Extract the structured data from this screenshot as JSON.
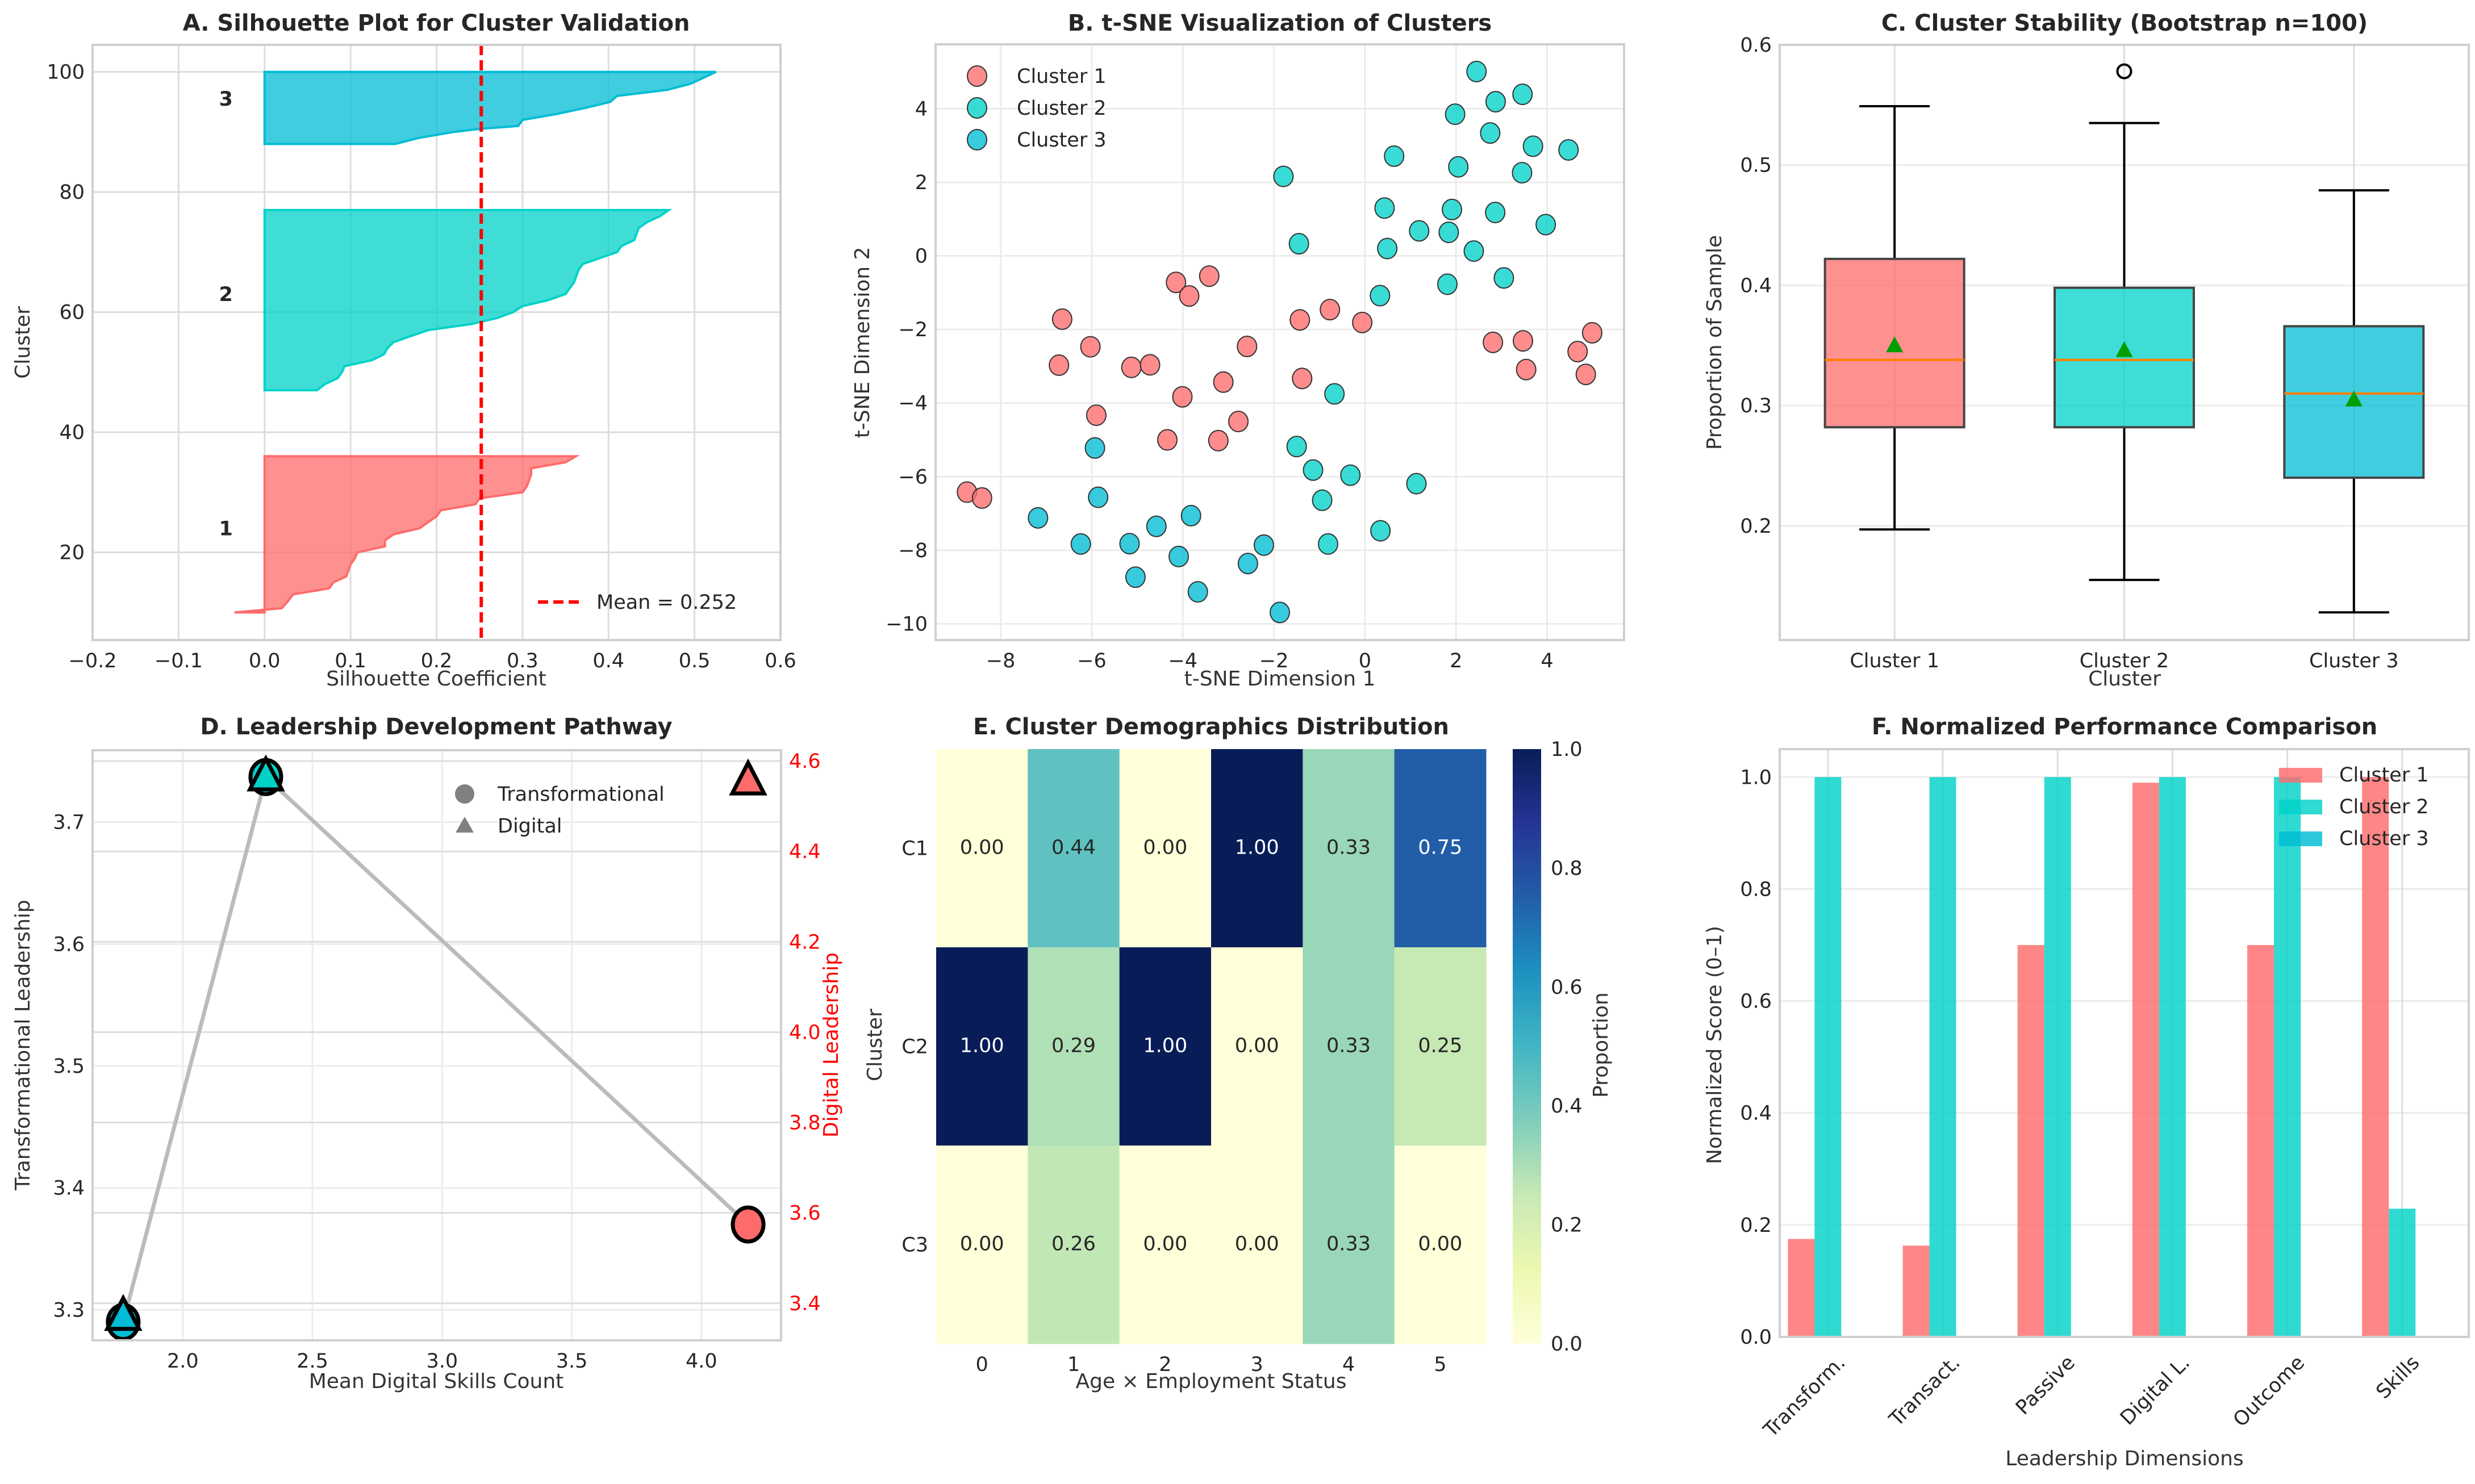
{
  "colors": {
    "cluster1": "#FF6B6B",
    "cluster2": "#00D2C8",
    "cluster3": "#00BCD4",
    "mean_line": "#FF0000",
    "median": "#FF8000",
    "mean_marker": "#009E00",
    "path_line": "#BBBBBB",
    "right_axis": "#FF0000"
  },
  "chart_data": [
    {
      "id": "A",
      "type": "area",
      "title": "A. Silhouette Plot for Cluster Validation",
      "xlabel": "Silhouette Coefficient",
      "ylabel": "Cluster",
      "xlim": [
        -0.2,
        0.6
      ],
      "ylim": [
        5.4,
        104.5
      ],
      "xticks": [
        "−0.2",
        "−0.1",
        "0.0",
        "0.1",
        "0.2",
        "0.3",
        "0.4",
        "0.5",
        "0.6"
      ],
      "xtick_values": [
        -0.2,
        -0.1,
        0.0,
        0.1,
        0.2,
        0.3,
        0.4,
        0.5,
        0.6
      ],
      "yticks": [
        "20",
        "40",
        "60",
        "80",
        "100"
      ],
      "ytick_values": [
        20,
        40,
        60,
        80,
        100
      ],
      "grid": true,
      "mean_value": 0.252,
      "legend": {
        "label": "Mean = 0.252",
        "position": "lower-right"
      },
      "series": [
        {
          "name": "1",
          "label": "1",
          "color_key": "cluster1",
          "label_y": 24,
          "profile": [
            [
              10,
              -0.035
            ],
            [
              10.7,
              0.02
            ],
            [
              12,
              0.028
            ],
            [
              13,
              0.033
            ],
            [
              14,
              0.075
            ],
            [
              15,
              0.08
            ],
            [
              16,
              0.095
            ],
            [
              18,
              0.1
            ],
            [
              19,
              0.105
            ],
            [
              20,
              0.108
            ],
            [
              21,
              0.14
            ],
            [
              22,
              0.14
            ],
            [
              23,
              0.15
            ],
            [
              24,
              0.18
            ],
            [
              25,
              0.19
            ],
            [
              26,
              0.2
            ],
            [
              27,
              0.205
            ],
            [
              28,
              0.245
            ],
            [
              29,
              0.25
            ],
            [
              30,
              0.3
            ],
            [
              31,
              0.305
            ],
            [
              33,
              0.31
            ],
            [
              34,
              0.31
            ],
            [
              35,
              0.35
            ],
            [
              36,
              0.362
            ]
          ]
        },
        {
          "name": "2",
          "label": "2",
          "color_key": "cluster2",
          "label_y": 63,
          "profile": [
            [
              47,
              0.061
            ],
            [
              48,
              0.07
            ],
            [
              49,
              0.085
            ],
            [
              50,
              0.09
            ],
            [
              51,
              0.093
            ],
            [
              52,
              0.125
            ],
            [
              53,
              0.139
            ],
            [
              54,
              0.143
            ],
            [
              55,
              0.15
            ],
            [
              56,
              0.17
            ],
            [
              57,
              0.19
            ],
            [
              58,
              0.24
            ],
            [
              59,
              0.27
            ],
            [
              60,
              0.289
            ],
            [
              61,
              0.3
            ],
            [
              62,
              0.33
            ],
            [
              63,
              0.35
            ],
            [
              64,
              0.355
            ],
            [
              65,
              0.36
            ],
            [
              67,
              0.365
            ],
            [
              68,
              0.37
            ],
            [
              69,
              0.39
            ],
            [
              70,
              0.41
            ],
            [
              71,
              0.415
            ],
            [
              72,
              0.43
            ],
            [
              74,
              0.435
            ],
            [
              75,
              0.445
            ],
            [
              76,
              0.46
            ],
            [
              77,
              0.47
            ]
          ]
        },
        {
          "name": "3",
          "label": "3",
          "color_key": "cluster3",
          "label_y": 95.5,
          "profile": [
            [
              88,
              0.152
            ],
            [
              89,
              0.179
            ],
            [
              90,
              0.22
            ],
            [
              90.5,
              0.25
            ],
            [
              91,
              0.295
            ],
            [
              92,
              0.3
            ],
            [
              93,
              0.34
            ],
            [
              94,
              0.373
            ],
            [
              95,
              0.402
            ],
            [
              96,
              0.41
            ],
            [
              97,
              0.468
            ],
            [
              98,
              0.495
            ],
            [
              99,
              0.51
            ],
            [
              100,
              0.525
            ]
          ]
        }
      ]
    },
    {
      "id": "B",
      "type": "scatter",
      "title": "B. t-SNE Visualization of Clusters",
      "xlabel": "t-SNE Dimension 1",
      "ylabel": "t-SNE Dimension 2",
      "xlim": [
        -9.43,
        5.69
      ],
      "ylim": [
        -10.44,
        5.75
      ],
      "xticks": [
        "−8",
        "−6",
        "−4",
        "−2",
        "0",
        "2",
        "4"
      ],
      "xtick_values": [
        -8,
        -6,
        -4,
        -2,
        0,
        2,
        4
      ],
      "yticks": [
        "−10",
        "−8",
        "−6",
        "−4",
        "−2",
        "0",
        "2",
        "4"
      ],
      "ytick_values": [
        -10,
        -8,
        -6,
        -4,
        -2,
        0,
        2,
        4
      ],
      "grid": true,
      "legend": {
        "position": "top-left"
      },
      "series": [
        {
          "name": "Cluster 1",
          "color_key": "cluster1",
          "points": [
            [
              -6.65,
              -1.72
            ],
            [
              -6.03,
              -2.47
            ],
            [
              -6.72,
              -2.97
            ],
            [
              -5.13,
              -3.03
            ],
            [
              -4.72,
              -2.96
            ],
            [
              -5.9,
              -4.33
            ],
            [
              -4.15,
              -0.72
            ],
            [
              -3.86,
              -1.09
            ],
            [
              -3.42,
              -0.55
            ],
            [
              -2.59,
              -2.46
            ],
            [
              -3.11,
              -3.43
            ],
            [
              -4.01,
              -3.83
            ],
            [
              -2.78,
              -4.5
            ],
            [
              -4.34,
              -5.0
            ],
            [
              -3.22,
              -5.02
            ],
            [
              -1.43,
              -1.74
            ],
            [
              -0.77,
              -1.46
            ],
            [
              -0.06,
              -1.81
            ],
            [
              -1.38,
              -3.33
            ],
            [
              2.81,
              -2.35
            ],
            [
              3.47,
              -2.31
            ],
            [
              3.54,
              -3.09
            ],
            [
              4.67,
              -2.6
            ],
            [
              4.99,
              -2.09
            ],
            [
              4.85,
              -3.22
            ],
            [
              -8.74,
              -6.42
            ],
            [
              -8.41,
              -6.58
            ]
          ]
        },
        {
          "name": "Cluster 2",
          "color_key": "cluster2",
          "points": [
            [
              2.45,
              5.01
            ],
            [
              3.46,
              4.39
            ],
            [
              2.87,
              4.19
            ],
            [
              1.98,
              3.85
            ],
            [
              2.75,
              3.34
            ],
            [
              3.69,
              2.98
            ],
            [
              4.47,
              2.88
            ],
            [
              0.64,
              2.71
            ],
            [
              2.05,
              2.42
            ],
            [
              3.45,
              2.26
            ],
            [
              -1.79,
              2.16
            ],
            [
              0.43,
              1.3
            ],
            [
              1.91,
              1.26
            ],
            [
              2.86,
              1.18
            ],
            [
              3.97,
              0.85
            ],
            [
              1.19,
              0.68
            ],
            [
              1.84,
              0.64
            ],
            [
              -1.45,
              0.33
            ],
            [
              0.49,
              0.2
            ],
            [
              2.39,
              0.13
            ],
            [
              3.05,
              -0.6
            ],
            [
              1.81,
              -0.77
            ],
            [
              0.33,
              -1.08
            ],
            [
              -0.67,
              -3.75
            ],
            [
              -1.5,
              -5.18
            ],
            [
              -1.14,
              -5.82
            ],
            [
              -0.32,
              -5.96
            ],
            [
              1.13,
              -6.19
            ],
            [
              -0.94,
              -6.64
            ],
            [
              0.34,
              -7.47
            ],
            [
              -0.81,
              -7.83
            ]
          ]
        },
        {
          "name": "Cluster 3",
          "color_key": "cluster3",
          "points": [
            [
              -5.93,
              -5.22
            ],
            [
              -5.86,
              -6.56
            ],
            [
              -7.18,
              -7.12
            ],
            [
              -6.24,
              -7.83
            ],
            [
              -5.17,
              -7.82
            ],
            [
              -5.04,
              -8.73
            ],
            [
              -4.58,
              -7.35
            ],
            [
              -3.82,
              -7.06
            ],
            [
              -4.09,
              -8.17
            ],
            [
              -3.67,
              -9.13
            ],
            [
              -2.57,
              -8.36
            ],
            [
              -2.22,
              -7.86
            ],
            [
              -1.87,
              -9.69
            ]
          ]
        }
      ]
    },
    {
      "id": "C",
      "type": "box",
      "title": "C. Cluster Stability (Bootstrap n=100)",
      "xlabel": "Cluster",
      "ylabel": "Proportion of Sample",
      "ylim": [
        0.105,
        0.6
      ],
      "yticks": [
        "0.2",
        "0.3",
        "0.4",
        "0.5",
        "0.6"
      ],
      "ytick_values": [
        0.2,
        0.3,
        0.4,
        0.5,
        0.6
      ],
      "grid": true,
      "categories": [
        "Cluster 1",
        "Cluster 2",
        "Cluster 3"
      ],
      "boxes": [
        {
          "name": "Cluster 1",
          "color_key": "cluster1",
          "whisker_low": 0.197,
          "q1": 0.282,
          "median": 0.338,
          "mean": 0.35,
          "q3": 0.422,
          "whisker_high": 0.549,
          "outliers": []
        },
        {
          "name": "Cluster 2",
          "color_key": "cluster2",
          "whisker_low": 0.155,
          "q1": 0.282,
          "median": 0.338,
          "mean": 0.346,
          "q3": 0.398,
          "whisker_high": 0.535,
          "outliers": [
            0.578
          ]
        },
        {
          "name": "Cluster 3",
          "color_key": "cluster3",
          "whisker_low": 0.128,
          "q1": 0.24,
          "median": 0.31,
          "mean": 0.305,
          "q3": 0.366,
          "whisker_high": 0.479,
          "outliers": []
        }
      ]
    },
    {
      "id": "D",
      "type": "scatter",
      "title": "D. Leadership Development Pathway",
      "xlabel": "Mean Digital Skills Count",
      "ylabel": "Transformational Leadership",
      "ylabel_right": "Digital Leadership",
      "xlim": [
        1.652,
        4.307
      ],
      "ylim": [
        3.275,
        3.759
      ],
      "ylim_right": [
        3.318,
        4.624
      ],
      "xticks": [
        "2.0",
        "2.5",
        "3.0",
        "3.5",
        "4.0"
      ],
      "xtick_values": [
        2.0,
        2.5,
        3.0,
        3.5,
        4.0
      ],
      "yticks": [
        "3.3",
        "3.4",
        "3.5",
        "3.6",
        "3.7"
      ],
      "ytick_values": [
        3.3,
        3.4,
        3.5,
        3.6,
        3.7
      ],
      "yticks_right": [
        "3.4",
        "3.6",
        "3.8",
        "4.0",
        "4.2",
        "4.4",
        "4.6"
      ],
      "ytick_values_right": [
        3.4,
        3.6,
        3.8,
        4.0,
        4.2,
        4.4,
        4.6
      ],
      "grid": true,
      "legend": {
        "position": "top-right",
        "entries": [
          "Transformational",
          "Digital"
        ]
      },
      "points": [
        {
          "cluster": "Cluster 3",
          "color_key": "cluster3",
          "x": 1.77,
          "transformational": 3.29,
          "digital": 3.371
        },
        {
          "cluster": "Cluster 2",
          "color_key": "cluster2",
          "x": 2.32,
          "transformational": 3.737,
          "digital": 4.565
        },
        {
          "cluster": "Cluster 1",
          "color_key": "cluster1",
          "x": 4.18,
          "transformational": 3.37,
          "digital": 4.556
        }
      ]
    },
    {
      "id": "E",
      "type": "heatmap",
      "title": "E. Cluster Demographics Distribution",
      "xlabel": "Age × Employment Status",
      "ylabel": "Cluster",
      "colorbar_label": "Proportion",
      "colorbar_ticks": [
        "0.0",
        "0.2",
        "0.4",
        "0.6",
        "0.8",
        "1.0"
      ],
      "colorbar_tick_values": [
        0,
        0.2,
        0.4,
        0.6,
        0.8,
        1.0
      ],
      "clim": [
        0,
        1
      ],
      "colormap": "YlGnBu",
      "x_categories": [
        "0",
        "1",
        "2",
        "3",
        "4",
        "5"
      ],
      "y_categories": [
        "C1",
        "C2",
        "C3"
      ],
      "values": [
        [
          0.0,
          0.44,
          0.0,
          1.0,
          0.33,
          0.75
        ],
        [
          1.0,
          0.29,
          1.0,
          0.0,
          0.33,
          0.25
        ],
        [
          0.0,
          0.26,
          0.0,
          0.0,
          0.33,
          0.0
        ]
      ]
    },
    {
      "id": "F",
      "type": "bar",
      "title": "F. Normalized Performance Comparison",
      "xlabel": "Leadership Dimensions",
      "ylabel": "Normalized Score (0–1)",
      "ylim": [
        0,
        1.05
      ],
      "yticks": [
        "0.0",
        "0.2",
        "0.4",
        "0.6",
        "0.8",
        "1.0"
      ],
      "ytick_values": [
        0,
        0.2,
        0.4,
        0.6,
        0.8,
        1.0
      ],
      "grid": true,
      "legend": {
        "position": "top-right"
      },
      "categories": [
        "Transform.",
        "Transact.",
        "Passive",
        "Digital L.",
        "Outcome",
        "Skills"
      ],
      "series": [
        {
          "name": "Cluster 1",
          "color_key": "cluster1",
          "values": [
            0.175,
            0.163,
            0.7,
            0.99,
            0.7,
            1.0
          ]
        },
        {
          "name": "Cluster 2",
          "color_key": "cluster2",
          "values": [
            1.0,
            1.0,
            1.0,
            1.0,
            1.0,
            0.229
          ]
        },
        {
          "name": "Cluster 3",
          "color_key": "cluster3",
          "values": [
            0,
            0,
            0,
            0,
            0,
            0
          ]
        }
      ]
    }
  ]
}
